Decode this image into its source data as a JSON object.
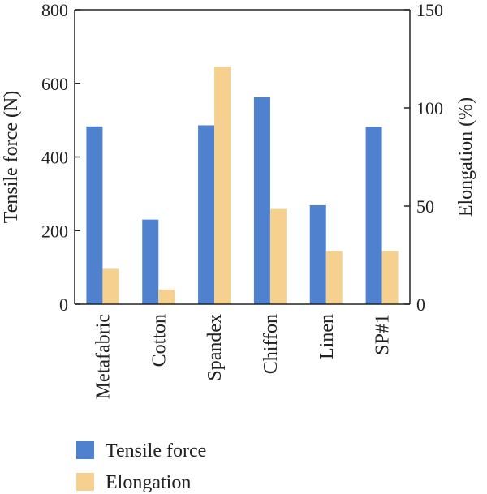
{
  "chart_data": {
    "type": "bar",
    "title": "",
    "categories": [
      "Metafabric",
      "Cotton",
      "Spandex",
      "Chiffon",
      "Linen",
      "SP#1"
    ],
    "series": [
      {
        "name": "Tensile force",
        "axis": "left",
        "color": "#4f81cf",
        "values": [
          483,
          230,
          486,
          562,
          269,
          482
        ]
      },
      {
        "name": "Elongation",
        "axis": "right",
        "color": "#f6d08e",
        "values": [
          18,
          7.5,
          121,
          48.5,
          27,
          27
        ]
      }
    ],
    "ylabel": "Tensile force (N)",
    "ylim": [
      0,
      800
    ],
    "yticks": [
      0,
      200,
      400,
      600,
      800
    ],
    "y2label": "Elongation (%)",
    "y2lim": [
      0,
      150
    ],
    "y2ticks": [
      0,
      50,
      100,
      150
    ],
    "grid": false,
    "legend_position": "bottom-left"
  }
}
